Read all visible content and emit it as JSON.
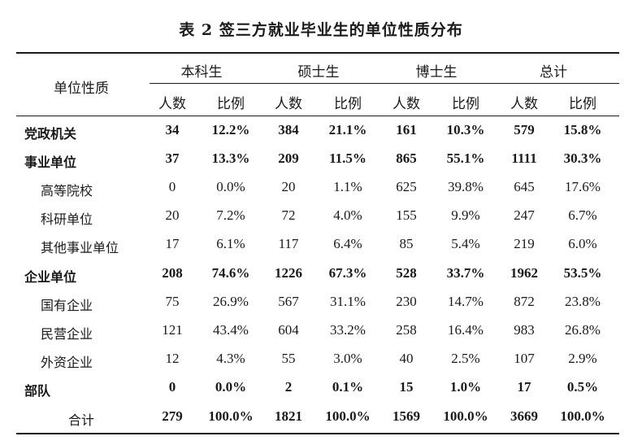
{
  "title": "表 2 签三方就业毕业生的单位性质分布",
  "header": {
    "row_label": "单位性质",
    "groups": [
      "本科生",
      "硕士生",
      "博士生",
      "总计"
    ],
    "sub": [
      "人数",
      "比例"
    ]
  },
  "rows": [
    {
      "label": "党政机关",
      "level": "main",
      "values": [
        "34",
        "12.2%",
        "384",
        "21.1%",
        "161",
        "10.3%",
        "579",
        "15.8%"
      ]
    },
    {
      "label": "事业单位",
      "level": "main",
      "values": [
        "37",
        "13.3%",
        "209",
        "11.5%",
        "865",
        "55.1%",
        "1111",
        "30.3%"
      ]
    },
    {
      "label": "高等院校",
      "level": "sub",
      "values": [
        "0",
        "0.0%",
        "20",
        "1.1%",
        "625",
        "39.8%",
        "645",
        "17.6%"
      ]
    },
    {
      "label": "科研单位",
      "level": "sub",
      "values": [
        "20",
        "7.2%",
        "72",
        "4.0%",
        "155",
        "9.9%",
        "247",
        "6.7%"
      ]
    },
    {
      "label": "其他事业单位",
      "level": "sub",
      "values": [
        "17",
        "6.1%",
        "117",
        "6.4%",
        "85",
        "5.4%",
        "219",
        "6.0%"
      ]
    },
    {
      "label": "企业单位",
      "level": "main",
      "values": [
        "208",
        "74.6%",
        "1226",
        "67.3%",
        "528",
        "33.7%",
        "1962",
        "53.5%"
      ]
    },
    {
      "label": "国有企业",
      "level": "sub",
      "values": [
        "75",
        "26.9%",
        "567",
        "31.1%",
        "230",
        "14.7%",
        "872",
        "23.8%"
      ]
    },
    {
      "label": "民营企业",
      "level": "sub",
      "values": [
        "121",
        "43.4%",
        "604",
        "33.2%",
        "258",
        "16.4%",
        "983",
        "26.8%"
      ]
    },
    {
      "label": "外资企业",
      "level": "sub",
      "values": [
        "12",
        "4.3%",
        "55",
        "3.0%",
        "40",
        "2.5%",
        "107",
        "2.9%"
      ]
    },
    {
      "label": "部队",
      "level": "main",
      "values": [
        "0",
        "0.0%",
        "2",
        "0.1%",
        "15",
        "1.0%",
        "17",
        "0.5%"
      ]
    },
    {
      "label": "合计",
      "level": "total",
      "values": [
        "279",
        "100.0%",
        "1821",
        "100.0%",
        "1569",
        "100.0%",
        "3669",
        "100.0%"
      ]
    }
  ]
}
